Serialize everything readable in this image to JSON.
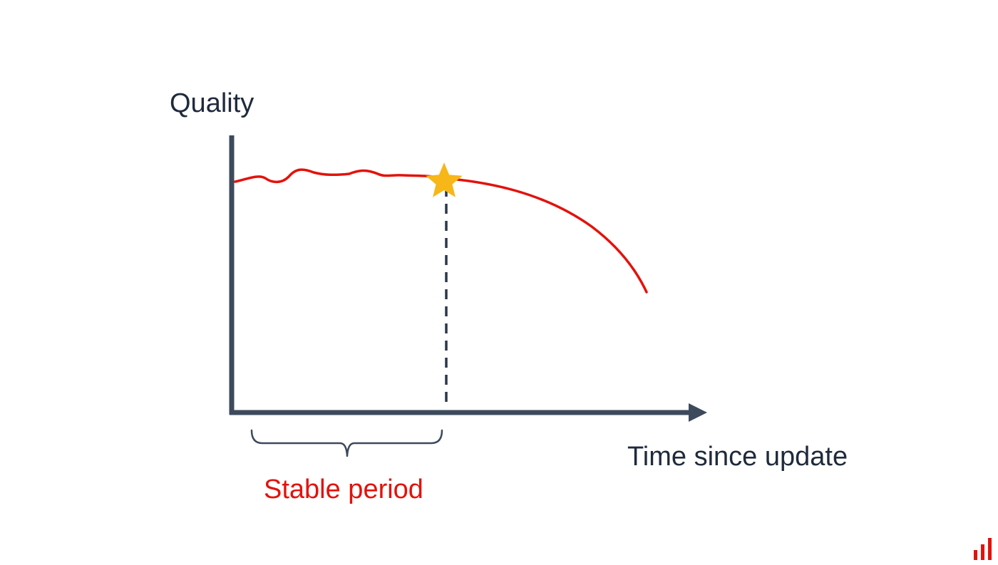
{
  "diagram": {
    "y_axis_label": "Quality",
    "x_axis_label": "Time since update",
    "annotation": "Stable period",
    "marker": "star-icon"
  },
  "brand": {
    "logo": "bar-chart-logo-icon"
  },
  "colors": {
    "axis": "#3d4a5c",
    "curve": "#e3120b",
    "star": "#f7b718",
    "text": "#1f2a3c",
    "annotation": "#e3120b",
    "logo": "#e3120b"
  }
}
